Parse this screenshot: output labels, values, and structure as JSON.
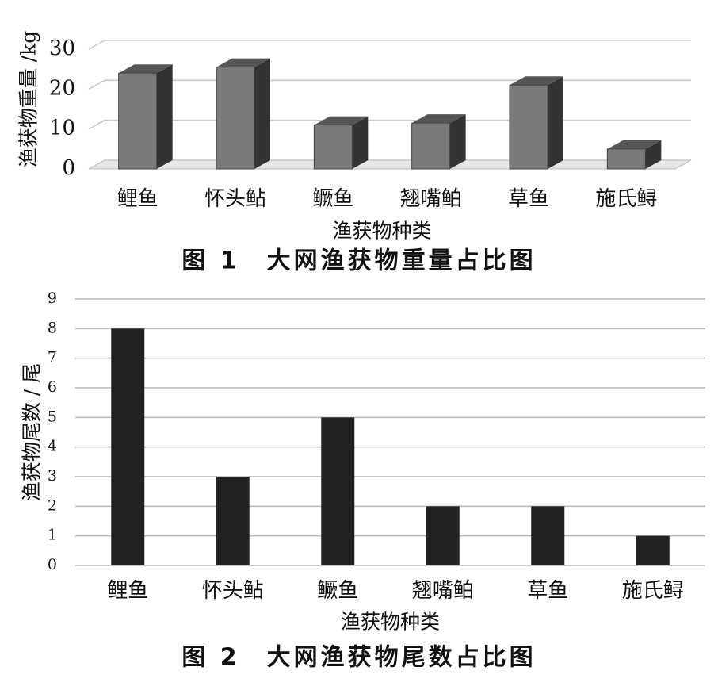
{
  "chart_data": [
    {
      "type": "bar3d",
      "title": "图 1　大网渔获物重量占比图",
      "x_label": "渔获物种类",
      "y_label": "渔获物重量 /kg",
      "categories": [
        "鲤鱼",
        "怀头鲇",
        "鳜鱼",
        "翘嘴鲌",
        "草鱼",
        "施氏鲟"
      ],
      "values": [
        24,
        25.5,
        11,
        11.5,
        21,
        5
      ],
      "color": "#7b7b7b",
      "ylim": [
        0,
        30
      ],
      "yticks": [
        0,
        10,
        20,
        30
      ],
      "grid": true
    },
    {
      "type": "bar",
      "title": "图 2　大网渔获物尾数占比图",
      "x_label": "渔获物种类",
      "y_label": "渔获物尾数 / 尾",
      "categories": [
        "鲤鱼",
        "怀头鲇",
        "鳜鱼",
        "翘嘴鲌",
        "草鱼",
        "施氏鲟"
      ],
      "values": [
        8,
        3,
        5,
        2,
        2,
        1
      ],
      "color": "#222222",
      "ylim": [
        0,
        9
      ],
      "yticks": [
        0,
        1,
        2,
        3,
        4,
        5,
        6,
        7,
        8,
        9
      ],
      "grid": true
    }
  ]
}
